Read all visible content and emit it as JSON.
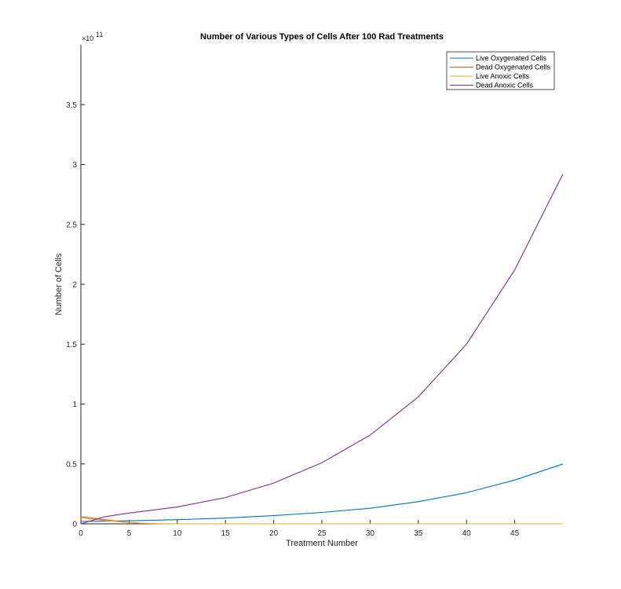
{
  "chart_data": {
    "type": "line",
    "title": "Number of Various Types of Cells After 100 Rad Treatments",
    "xlabel": "Treatment Number",
    "ylabel": "Number of Cells",
    "y_exponent_base": "×10",
    "y_exponent_power": "11",
    "xlim": [
      0,
      50
    ],
    "ylim": [
      0,
      4.0
    ],
    "xticks": [
      0,
      5,
      10,
      15,
      20,
      25,
      30,
      35,
      40,
      45
    ],
    "yticks": [
      0,
      0.5,
      1,
      1.5,
      2,
      2.5,
      3,
      3.5
    ],
    "ytick_labels": [
      "0",
      "0.5",
      "1",
      "1.5",
      "2",
      "2.5",
      "3",
      "3.5"
    ],
    "grid": false,
    "legend_position": "top-right",
    "series": [
      {
        "name": "Live Oxygenated Cells",
        "color": "#0072BD",
        "x": [
          0,
          5,
          10,
          15,
          20,
          25,
          30,
          35,
          40,
          45,
          50
        ],
        "y": [
          0.02,
          0.025,
          0.035,
          0.048,
          0.068,
          0.095,
          0.13,
          0.185,
          0.26,
          0.365,
          0.5
        ]
      },
      {
        "name": "Dead Oxygenated Cells",
        "color": "#D95319",
        "x": [
          0,
          1,
          2,
          3,
          4,
          5,
          6,
          7,
          8,
          10,
          50
        ],
        "y": [
          0.06,
          0.05,
          0.04,
          0.03,
          0.02,
          0.012,
          0.006,
          0.002,
          0.0,
          0.0,
          0.0
        ]
      },
      {
        "name": "Live Anoxic Cells",
        "color": "#EDB120",
        "x": [
          0,
          1,
          2,
          3,
          4,
          5,
          6,
          8,
          10,
          50
        ],
        "y": [
          0.05,
          0.04,
          0.032,
          0.024,
          0.017,
          0.011,
          0.006,
          0.002,
          0.0,
          0.0
        ]
      },
      {
        "name": "Dead Anoxic Cells",
        "color": "#7E2F8E",
        "x": [
          0,
          2.5,
          5,
          10,
          15,
          20,
          25,
          30,
          35,
          40,
          45,
          50
        ],
        "y": [
          0.0,
          0.06,
          0.09,
          0.14,
          0.22,
          0.34,
          0.51,
          0.74,
          1.06,
          1.5,
          2.12,
          2.92
        ]
      }
    ]
  }
}
